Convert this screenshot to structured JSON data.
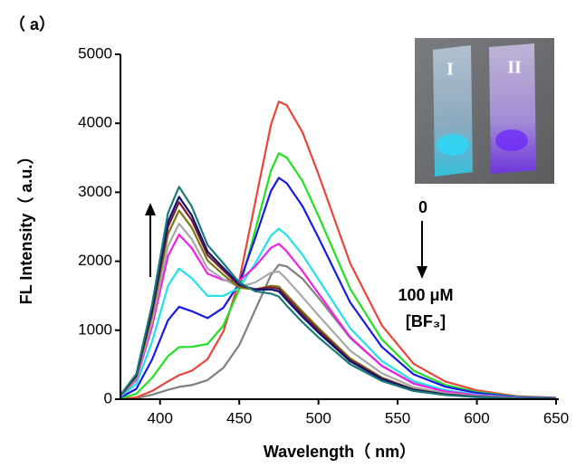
{
  "chart_data": {
    "type": "line",
    "panel_label": "（ a）",
    "xlabel": "Wavelength（ nm）",
    "ylabel": "FL Intensity（ a.u.）",
    "annotations": {
      "start": "0",
      "end": "100 μM",
      "reagent": "[BF₃]",
      "cuvette_1": "I",
      "cuvette_2": "II"
    },
    "xlim": [
      375,
      650
    ],
    "xticks": [
      400,
      450,
      500,
      550,
      600,
      650
    ],
    "ylim": [
      0,
      5000
    ],
    "yticks": [
      0,
      1000,
      2000,
      3000,
      4000,
      5000
    ],
    "x": [
      375,
      385,
      395,
      405,
      412,
      420,
      430,
      440,
      450,
      460,
      470,
      475,
      480,
      490,
      500,
      520,
      540,
      560,
      580,
      600,
      625,
      650
    ],
    "series": [
      {
        "color": "#808080",
        "values": [
          2,
          14,
          64,
          135,
          178,
          205,
          277,
          456,
          785,
          1291,
          1800,
          1949,
          1925,
          1745,
          1472,
          890,
          484,
          232,
          116,
          58,
          19,
          10
        ]
      },
      {
        "color": "#e8453c",
        "values": [
          4,
          26,
          120,
          258,
          348,
          412,
          582,
          984,
          1721,
          2848,
          3982,
          4315,
          4263,
          3867,
          3263,
          1972,
          1071,
          514,
          257,
          128,
          43,
          21
        ]
      },
      {
        "color": "#22e022",
        "values": [
          13,
          78,
          310,
          624,
          754,
          758,
          801,
          1069,
          1595,
          2444,
          3313,
          3564,
          3503,
          3160,
          2659,
          1602,
          868,
          415,
          208,
          104,
          35,
          17
        ]
      },
      {
        "color": "#1a1ae0",
        "values": [
          25,
          150,
          578,
          1145,
          1340,
          1276,
          1176,
          1327,
          1682,
          2332,
          3019,
          3210,
          3130,
          2797,
          2344,
          1404,
          759,
          361,
          181,
          90,
          30,
          15
        ]
      },
      {
        "color": "#22e0e8",
        "values": [
          37,
          220,
          835,
          1643,
          1895,
          1756,
          1499,
          1497,
          1615,
          1966,
          2372,
          2473,
          2378,
          2090,
          1739,
          1030,
          554,
          262,
          131,
          65,
          22,
          11
        ]
      },
      {
        "color": "#f020e8",
        "values": [
          47,
          280,
          1058,
          2078,
          2386,
          2191,
          1819,
          1727,
          1716,
          1921,
          2196,
          2253,
          2141,
          1855,
          1534,
          900,
          482,
          226,
          113,
          56,
          19,
          9
        ]
      },
      {
        "color": "#a8a8a8",
        "values": [
          50,
          300,
          1132,
          2222,
          2544,
          2323,
          1895,
          1740,
          1626,
          1693,
          1834,
          1850,
          1736,
          1480,
          1215,
          705,
          376,
          174,
          87,
          44,
          15,
          7
        ]
      },
      {
        "color": "#7a7a10",
        "values": [
          54,
          324,
          1221,
          2394,
          2736,
          2490,
          2010,
          1806,
          1617,
          1590,
          1644,
          1632,
          1512,
          1269,
          1034,
          593,
          314,
          144,
          72,
          36,
          12,
          6
        ]
      },
      {
        "color": "#7a1a3a",
        "values": [
          56,
          338,
          1275,
          2499,
          2855,
          2596,
          2089,
          1866,
          1650,
          1594,
          1622,
          1601,
          1477,
          1232,
          1001,
          571,
          302,
          138,
          69,
          35,
          12,
          6
        ]
      },
      {
        "color": "#10106e",
        "values": [
          58,
          348,
          1311,
          2569,
          2933,
          2665,
          2140,
          1902,
          1665,
          1585,
          1592,
          1564,
          1437,
          1193,
          967,
          550,
          290,
          132,
          66,
          33,
          11,
          6
        ]
      },
      {
        "color": "#1a7a7a",
        "values": [
          61,
          366,
          1378,
          2699,
          3080,
          2795,
          2235,
          1969,
          1692,
          1565,
          1530,
          1488,
          1356,
          1114,
          897,
          506,
          265,
          120,
          60,
          30,
          10,
          5
        ]
      }
    ]
  }
}
